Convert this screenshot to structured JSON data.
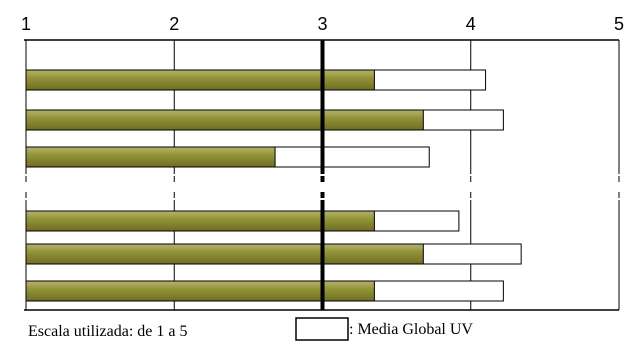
{
  "chart_data": {
    "type": "bar",
    "orientation": "horizontal",
    "xlim": [
      1,
      5
    ],
    "x_ticks": [
      "1",
      "2",
      "3",
      "4",
      "5"
    ],
    "reference_line": 3,
    "grid": true,
    "groups": [
      [
        {
          "value": 3.35,
          "global": 4.1
        },
        {
          "value": 3.68,
          "global": 4.22
        },
        {
          "value": 2.68,
          "global": 3.72
        }
      ],
      [
        {
          "value": 3.35,
          "global": 3.92
        },
        {
          "value": 3.68,
          "global": 4.34
        },
        {
          "value": 3.35,
          "global": 4.22
        }
      ]
    ],
    "colors": {
      "bar_fill": "#8f8f36",
      "bar_fill_dark": "#6e6e24",
      "bar_fill_light": "#b4b46a",
      "global_fill": "#ffffff",
      "outline": "#000000"
    }
  },
  "footer": {
    "scale_note": "Escala utilizada: de 1 a 5",
    "legend_label": ": Media Global UV"
  }
}
